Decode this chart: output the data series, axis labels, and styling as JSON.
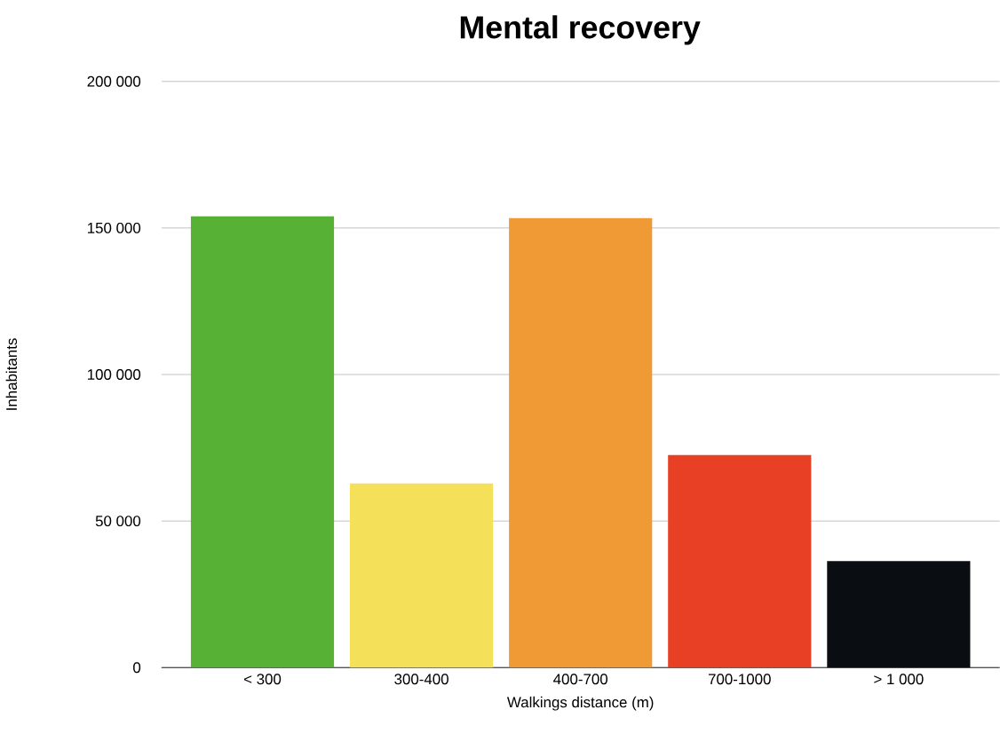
{
  "chart_data": {
    "type": "bar",
    "title": "Mental recovery",
    "xlabel": "Walkings distance (m)",
    "ylabel": "Inhabitants",
    "categories": [
      "< 300",
      "300-400",
      "400-700",
      "700-1000",
      "> 1 000"
    ],
    "values": [
      154000,
      62800,
      153400,
      72500,
      36300
    ],
    "colors": [
      "#56b134",
      "#f5e05a",
      "#f09a35",
      "#e84025",
      "#0a0d12"
    ],
    "ylim": [
      0,
      200000
    ],
    "yticks": [
      {
        "value": 0,
        "label": "0"
      },
      {
        "value": 50000,
        "label": "50 000"
      },
      {
        "value": 100000,
        "label": "100 000"
      },
      {
        "value": 150000,
        "label": "150 000"
      },
      {
        "value": 200000,
        "label": "200 000"
      }
    ],
    "grid": "y"
  }
}
